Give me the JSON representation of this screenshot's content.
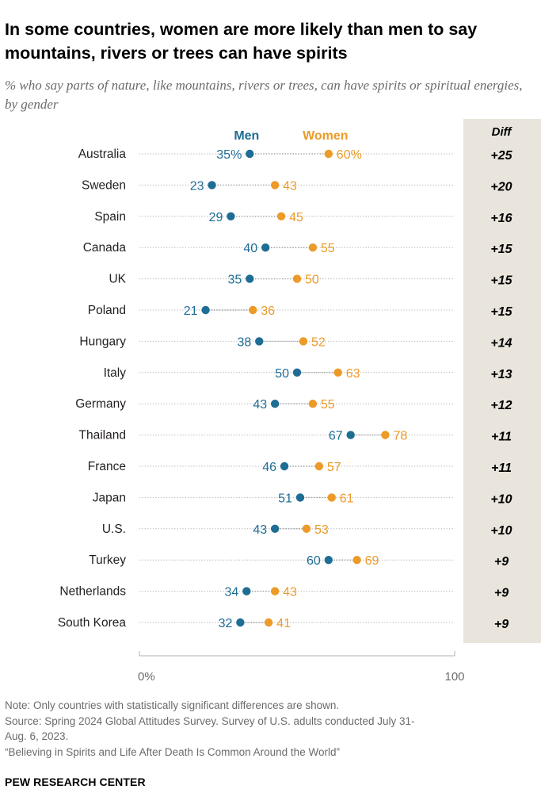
{
  "chart_data": {
    "type": "dot",
    "title": "In some countries, women are more likely than men to say mountains, rivers or trees can have spirits",
    "subtitle": "% who say parts of nature, like mountains, rivers or trees, can have spirits or spiritual energies, by gender",
    "series": [
      {
        "name": "Men",
        "color": "#1e6d94"
      },
      {
        "name": "Women",
        "color": "#ec9a28"
      }
    ],
    "diff_header": "Diff",
    "xlim": [
      0,
      100
    ],
    "axis_labels": [
      "0%",
      "100"
    ],
    "rows": [
      {
        "country": "Australia",
        "men": 35,
        "women": 60,
        "men_label": "35%",
        "women_label": "60%",
        "diff": "+25"
      },
      {
        "country": "Sweden",
        "men": 23,
        "women": 43,
        "men_label": "23",
        "women_label": "43",
        "diff": "+20"
      },
      {
        "country": "Spain",
        "men": 29,
        "women": 45,
        "men_label": "29",
        "women_label": "45",
        "diff": "+16"
      },
      {
        "country": "Canada",
        "men": 40,
        "women": 55,
        "men_label": "40",
        "women_label": "55",
        "diff": "+15"
      },
      {
        "country": "UK",
        "men": 35,
        "women": 50,
        "men_label": "35",
        "women_label": "50",
        "diff": "+15"
      },
      {
        "country": "Poland",
        "men": 21,
        "women": 36,
        "men_label": "21",
        "women_label": "36",
        "diff": "+15"
      },
      {
        "country": "Hungary",
        "men": 38,
        "women": 52,
        "men_label": "38",
        "women_label": "52",
        "diff": "+14"
      },
      {
        "country": "Italy",
        "men": 50,
        "women": 63,
        "men_label": "50",
        "women_label": "63",
        "diff": "+13"
      },
      {
        "country": "Germany",
        "men": 43,
        "women": 55,
        "men_label": "43",
        "women_label": "55",
        "diff": "+12"
      },
      {
        "country": "Thailand",
        "men": 67,
        "women": 78,
        "men_label": "67",
        "women_label": "78",
        "diff": "+11"
      },
      {
        "country": "France",
        "men": 46,
        "women": 57,
        "men_label": "46",
        "women_label": "57",
        "diff": "+11"
      },
      {
        "country": "Japan",
        "men": 51,
        "women": 61,
        "men_label": "51",
        "women_label": "61",
        "diff": "+10"
      },
      {
        "country": "U.S.",
        "men": 43,
        "women": 53,
        "men_label": "43",
        "women_label": "53",
        "diff": "+10"
      },
      {
        "country": "Turkey",
        "men": 60,
        "women": 69,
        "men_label": "60",
        "women_label": "69",
        "diff": "+9"
      },
      {
        "country": "Netherlands",
        "men": 34,
        "women": 43,
        "men_label": "34",
        "women_label": "43",
        "diff": "+9"
      },
      {
        "country": "South Korea",
        "men": 32,
        "women": 41,
        "men_label": "32",
        "women_label": "41",
        "diff": "+9"
      }
    ]
  },
  "notes": {
    "note": "Note: Only countries with statistically significant differences are shown.",
    "source_line1": "Source: Spring 2024 Global Attitudes Survey. Survey of U.S. adults conducted July 31-",
    "source_line2": "Aug. 6, 2023.",
    "report": "“Believing in Spirits and Life After Death Is Common Around the World”"
  },
  "brand": "PEW RESEARCH CENTER"
}
